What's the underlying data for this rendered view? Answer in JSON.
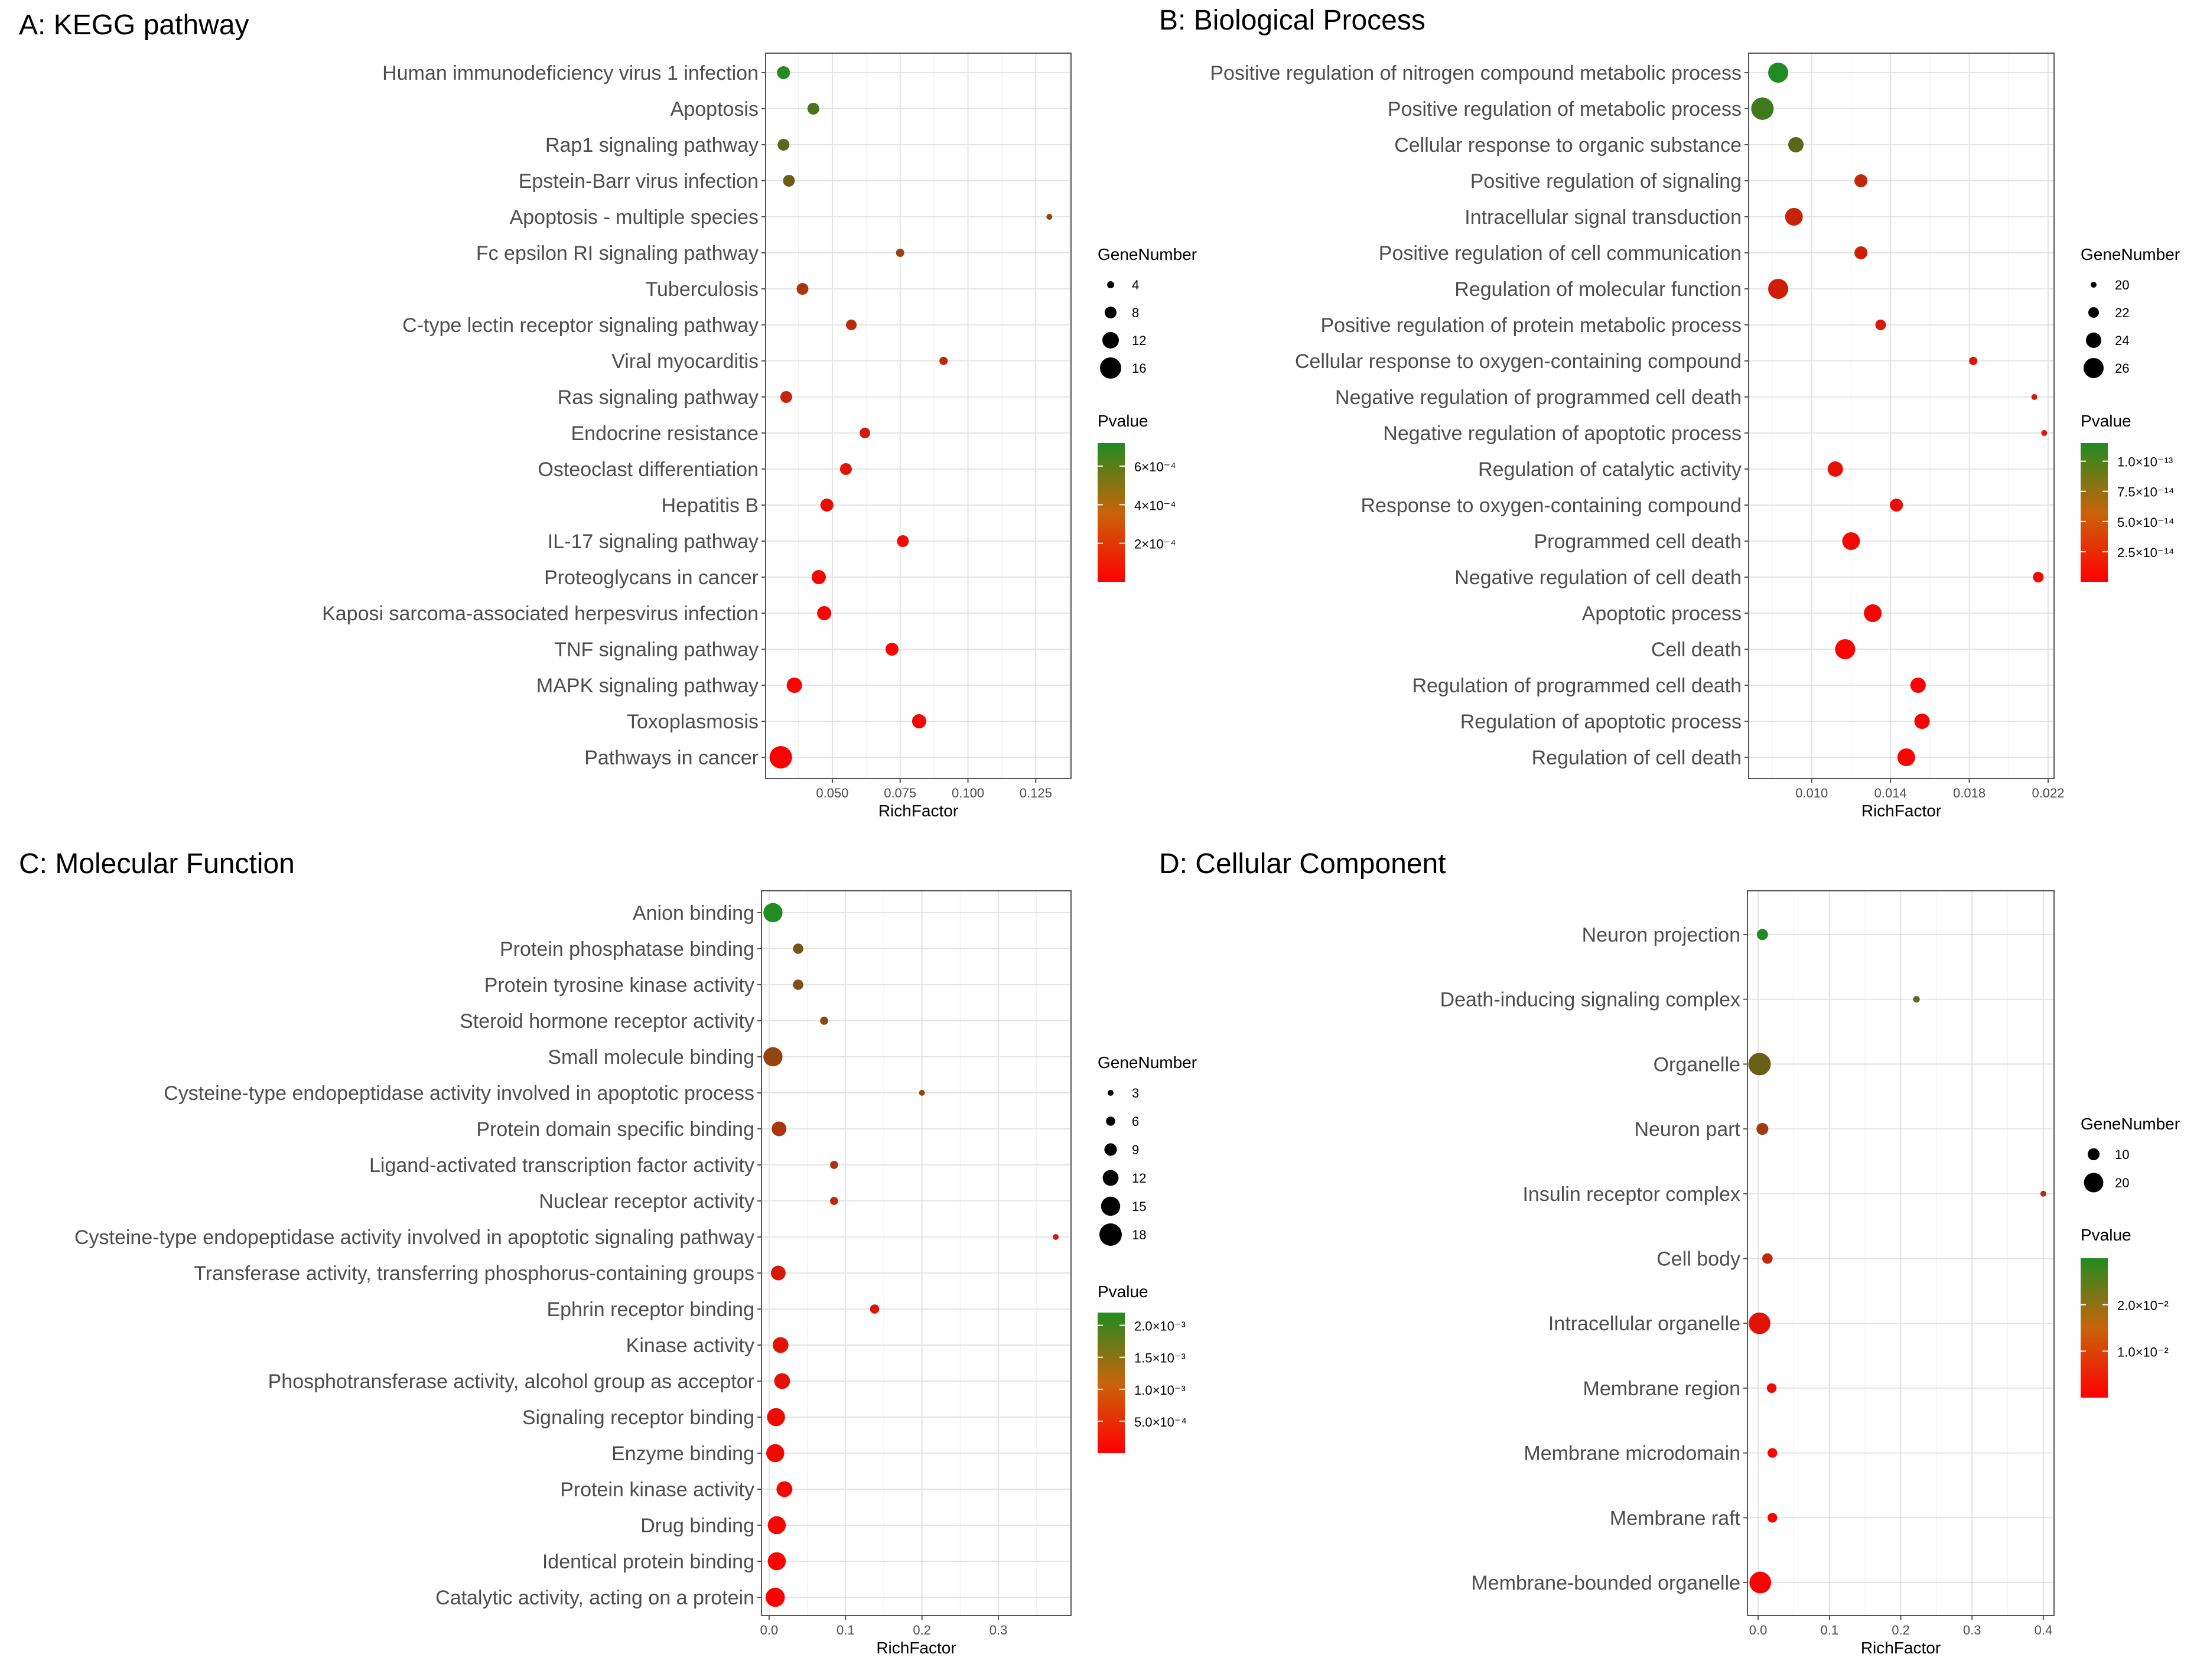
{
  "chart_data": [
    {
      "type": "scatter",
      "title": "A: KEGG pathway",
      "xlabel": "RichFactor",
      "categories": [
        "Human immunodeficiency virus 1 infection",
        "Apoptosis",
        "Rap1 signaling pathway",
        "Epstein-Barr virus infection",
        "Apoptosis - multiple species",
        "Fc epsilon RI signaling pathway",
        "Tuberculosis",
        "C-type lectin receptor signaling pathway",
        "Viral myocarditis",
        "Ras signaling pathway",
        "Endocrine resistance",
        "Osteoclast differentiation",
        "Hepatitis B",
        "IL-17 signaling pathway",
        "Proteoglycans in cancer",
        "Kaposi sarcoma-associated herpesvirus infection",
        "TNF signaling pathway",
        "MAPK signaling pathway",
        "Toxoplasmosis",
        "Pathways in cancer"
      ],
      "x": [
        0.032,
        0.043,
        0.032,
        0.034,
        0.13,
        0.075,
        0.039,
        0.057,
        0.091,
        0.033,
        0.062,
        0.055,
        0.048,
        0.076,
        0.045,
        0.047,
        0.072,
        0.036,
        0.082,
        0.031
      ],
      "gene_number": [
        9,
        8,
        8,
        8,
        3,
        5,
        8,
        7,
        5,
        8,
        7,
        8,
        9,
        8,
        10,
        10,
        9,
        11,
        10,
        17
      ],
      "pvalue": [
        0.00072,
        0.0006,
        0.00055,
        0.00048,
        0.00036,
        0.00033,
        0.00027,
        0.00022,
        0.0002,
        0.00018,
        0.00015,
        0.0001,
        6e-05,
        4e-05,
        3e-05,
        2e-05,
        1.5e-05,
        1e-05,
        5e-06,
        1e-06
      ],
      "xlim": [
        0.0254,
        0.138
      ],
      "xticks": [
        {
          "v": 0.05,
          "label": "0.050"
        },
        {
          "v": 0.075,
          "label": "0.075"
        },
        {
          "v": 0.1,
          "label": "0.100"
        },
        {
          "v": 0.125,
          "label": "0.125"
        }
      ],
      "size_legend": {
        "title": "GeneNumber",
        "values": [
          4,
          8,
          12,
          16
        ],
        "labels": [
          "4",
          "8",
          "12",
          "16"
        ]
      },
      "color_legend": {
        "title": "Pvalue",
        "min": 0,
        "max": 0.00072,
        "ticks": [
          {
            "v": 0.0006,
            "label": "6×10⁻⁴"
          },
          {
            "v": 0.0004,
            "label": "4×10⁻⁴"
          },
          {
            "v": 0.0002,
            "label": "2×10⁻⁴"
          }
        ]
      }
    },
    {
      "type": "scatter",
      "title": "B: Biological Process",
      "xlabel": "RichFactor",
      "categories": [
        "Positive regulation of nitrogen compound metabolic process",
        "Positive regulation of metabolic process",
        "Cellular response to organic substance",
        "Positive regulation of signaling",
        "Intracellular signal transduction",
        "Positive regulation of cell communication",
        "Regulation of molecular function",
        "Positive regulation of protein metabolic process",
        "Cellular response to oxygen-containing compound",
        "Negative regulation of programmed cell death",
        "Negative regulation of apoptotic process",
        "Regulation of catalytic activity",
        "Response to oxygen-containing compound",
        "Programmed cell death",
        "Negative regulation of cell death",
        "Apoptotic process",
        "Cell death",
        "Regulation of programmed cell death",
        "Regulation of apoptotic process",
        "Regulation of cell death"
      ],
      "x": [
        0.0083,
        0.0075,
        0.0092,
        0.0125,
        0.0091,
        0.0125,
        0.0083,
        0.0135,
        0.0182,
        0.0213,
        0.0218,
        0.0112,
        0.0143,
        0.012,
        0.0215,
        0.0131,
        0.0117,
        0.0154,
        0.0156,
        0.0148
      ],
      "gene_number": [
        26,
        27,
        24,
        23,
        25,
        23,
        26,
        22,
        21,
        20,
        20,
        24,
        23,
        25,
        22,
        25,
        26,
        24,
        24,
        25
      ],
      "pvalue": [
        1.15e-13,
        1e-13,
        8.5e-14,
        3.2e-14,
        2.9e-14,
        2.6e-14,
        2.4e-14,
        2.1e-14,
        1.9e-14,
        1.7e-14,
        1.5e-14,
        1.2e-14,
        1e-14,
        8e-15,
        6e-15,
        4e-15,
        3e-15,
        2e-15,
        1e-15,
        5e-16
      ],
      "xlim": [
        0.0068,
        0.0223
      ],
      "xticks": [
        {
          "v": 0.01,
          "label": "0.010"
        },
        {
          "v": 0.014,
          "label": "0.014"
        },
        {
          "v": 0.018,
          "label": "0.018"
        },
        {
          "v": 0.022,
          "label": "0.022"
        }
      ],
      "size_legend": {
        "title": "GeneNumber",
        "values": [
          20,
          22,
          24,
          26
        ],
        "labels": [
          "20",
          "22",
          "24",
          "26"
        ]
      },
      "color_legend": {
        "title": "Pvalue",
        "min": 0,
        "max": 1.15e-13,
        "ticks": [
          {
            "v": 1e-13,
            "label": "1.0×10⁻¹³"
          },
          {
            "v": 7.5e-14,
            "label": "7.5×10⁻¹⁴"
          },
          {
            "v": 5e-14,
            "label": "5.0×10⁻¹⁴"
          },
          {
            "v": 2.5e-14,
            "label": "2.5×10⁻¹⁴"
          }
        ]
      }
    },
    {
      "type": "scatter",
      "title": "C: Molecular Function",
      "xlabel": "RichFactor",
      "categories": [
        "Anion binding",
        "Protein phosphatase binding",
        "Protein tyrosine kinase activity",
        "Steroid hormone receptor activity",
        "Small molecule binding",
        "Cysteine-type endopeptidase activity involved in apoptotic process",
        "Protein domain specific binding",
        "Ligand-activated transcription factor activity",
        "Nuclear receptor activity",
        "Cysteine-type endopeptidase activity involved in apoptotic signaling pathway",
        "Transferase activity, transferring phosphorus-containing groups",
        "Ephrin receptor binding",
        "Kinase activity",
        "Phosphotransferase activity, alcohol group as acceptor",
        "Signaling receptor binding",
        "Enzyme binding",
        "Protein kinase activity",
        "Drug binding",
        "Identical protein binding",
        "Catalytic activity, acting on a protein"
      ],
      "x": [
        0.005,
        0.038,
        0.038,
        0.072,
        0.005,
        0.2,
        0.013,
        0.085,
        0.085,
        0.375,
        0.012,
        0.138,
        0.015,
        0.017,
        0.009,
        0.008,
        0.02,
        0.01,
        0.01,
        0.008
      ],
      "gene_number": [
        15,
        7,
        7,
        5,
        15,
        3,
        11,
        5,
        5,
        3,
        11,
        6,
        12,
        12,
        14,
        14,
        12,
        14,
        14,
        15
      ],
      "pvalue": [
        0.0022,
        0.00135,
        0.00125,
        0.00115,
        0.00108,
        0.001,
        0.00085,
        0.00075,
        0.00065,
        0.00055,
        0.0004,
        0.00035,
        0.0003,
        0.00025,
        0.0002,
        0.00015,
        0.0001,
        8e-05,
        5e-05,
        2e-05
      ],
      "xlim": [
        -0.01,
        0.395
      ],
      "xticks": [
        {
          "v": 0,
          "label": "0.0"
        },
        {
          "v": 0.1,
          "label": "0.1"
        },
        {
          "v": 0.2,
          "label": "0.2"
        },
        {
          "v": 0.3,
          "label": "0.3"
        }
      ],
      "size_legend": {
        "title": "GeneNumber",
        "values": [
          3,
          6,
          9,
          12,
          15,
          18
        ],
        "labels": [
          "3",
          "6",
          "9",
          "12",
          "15",
          "18"
        ]
      },
      "color_legend": {
        "title": "Pvalue",
        "min": 0,
        "max": 0.0022,
        "ticks": [
          {
            "v": 0.002,
            "label": "2.0×10⁻³"
          },
          {
            "v": 0.0015,
            "label": "1.5×10⁻³"
          },
          {
            "v": 0.001,
            "label": "1.0×10⁻³"
          },
          {
            "v": 0.0005,
            "label": "5.0×10⁻⁴"
          }
        ]
      }
    },
    {
      "type": "scatter",
      "title": "D: Cellular Component",
      "xlabel": "RichFactor",
      "categories": [
        "Neuron projection",
        "Death-inducing signaling complex",
        "Organelle",
        "Neuron part",
        "Insulin receptor complex",
        "Cell body",
        "Intracellular organelle",
        "Membrane region",
        "Membrane microdomain",
        "Membrane raft",
        "Membrane-bounded organelle"
      ],
      "x": [
        0.006,
        0.222,
        0.002,
        0.006,
        0.4,
        0.013,
        0.002,
        0.019,
        0.02,
        0.02,
        0.003
      ],
      "gene_number": [
        9,
        3,
        24,
        10,
        2,
        8,
        23,
        7,
        7,
        7,
        23
      ],
      "pvalue": [
        0.03,
        0.024,
        0.02,
        0.012,
        0.011,
        0.008,
        0.004,
        0.002,
        0.0015,
        0.001,
        0.0005
      ],
      "xlim": [
        -0.015,
        0.415
      ],
      "xticks": [
        {
          "v": 0,
          "label": "0.0"
        },
        {
          "v": 0.1,
          "label": "0.1"
        },
        {
          "v": 0.2,
          "label": "0.2"
        },
        {
          "v": 0.3,
          "label": "0.3"
        },
        {
          "v": 0.4,
          "label": "0.4"
        }
      ],
      "size_legend": {
        "title": "GeneNumber",
        "values": [
          10,
          20
        ],
        "labels": [
          "10",
          "20"
        ]
      },
      "color_legend": {
        "title": "Pvalue",
        "min": 0,
        "max": 0.03,
        "ticks": [
          {
            "v": 0.02,
            "label": "2.0×10⁻²"
          },
          {
            "v": 0.01,
            "label": "1.0×10⁻²"
          }
        ]
      }
    }
  ]
}
